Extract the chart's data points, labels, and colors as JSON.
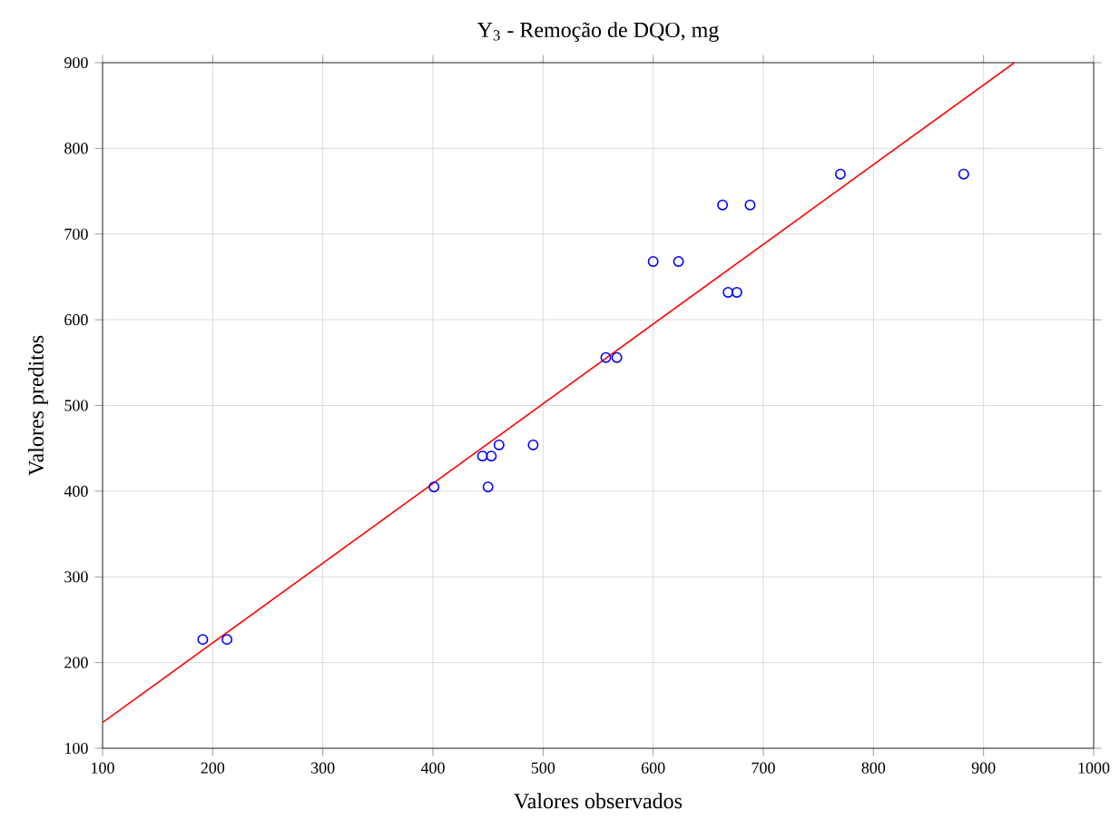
{
  "chart_data": {
    "type": "scatter",
    "title": "Y$_{3}$ - Remoção de DQO, mg",
    "xlabel": "Valores observados",
    "ylabel": "Valores preditos",
    "xlim": [
      100,
      1000
    ],
    "ylim": [
      100,
      900
    ],
    "xticks": [
      100,
      200,
      300,
      400,
      500,
      600,
      700,
      800,
      900,
      1000
    ],
    "yticks": [
      100,
      200,
      300,
      400,
      500,
      600,
      700,
      800,
      900
    ],
    "grid": true,
    "series": [
      {
        "marker": "circle",
        "color": "#0000ff",
        "x": [
          191,
          213,
          401,
          450,
          445,
          453,
          460,
          491,
          557,
          567,
          600,
          623,
          663,
          688,
          668,
          676,
          770,
          882
        ],
        "values": [
          227,
          227,
          405,
          405,
          441,
          441,
          454,
          454,
          556,
          556,
          668,
          668,
          734,
          734,
          632,
          632,
          770,
          770
        ]
      },
      {
        "type": "line",
        "color": "#ff0000",
        "x": [
          100,
          928
        ],
        "values": [
          130,
          900
        ]
      }
    ]
  }
}
